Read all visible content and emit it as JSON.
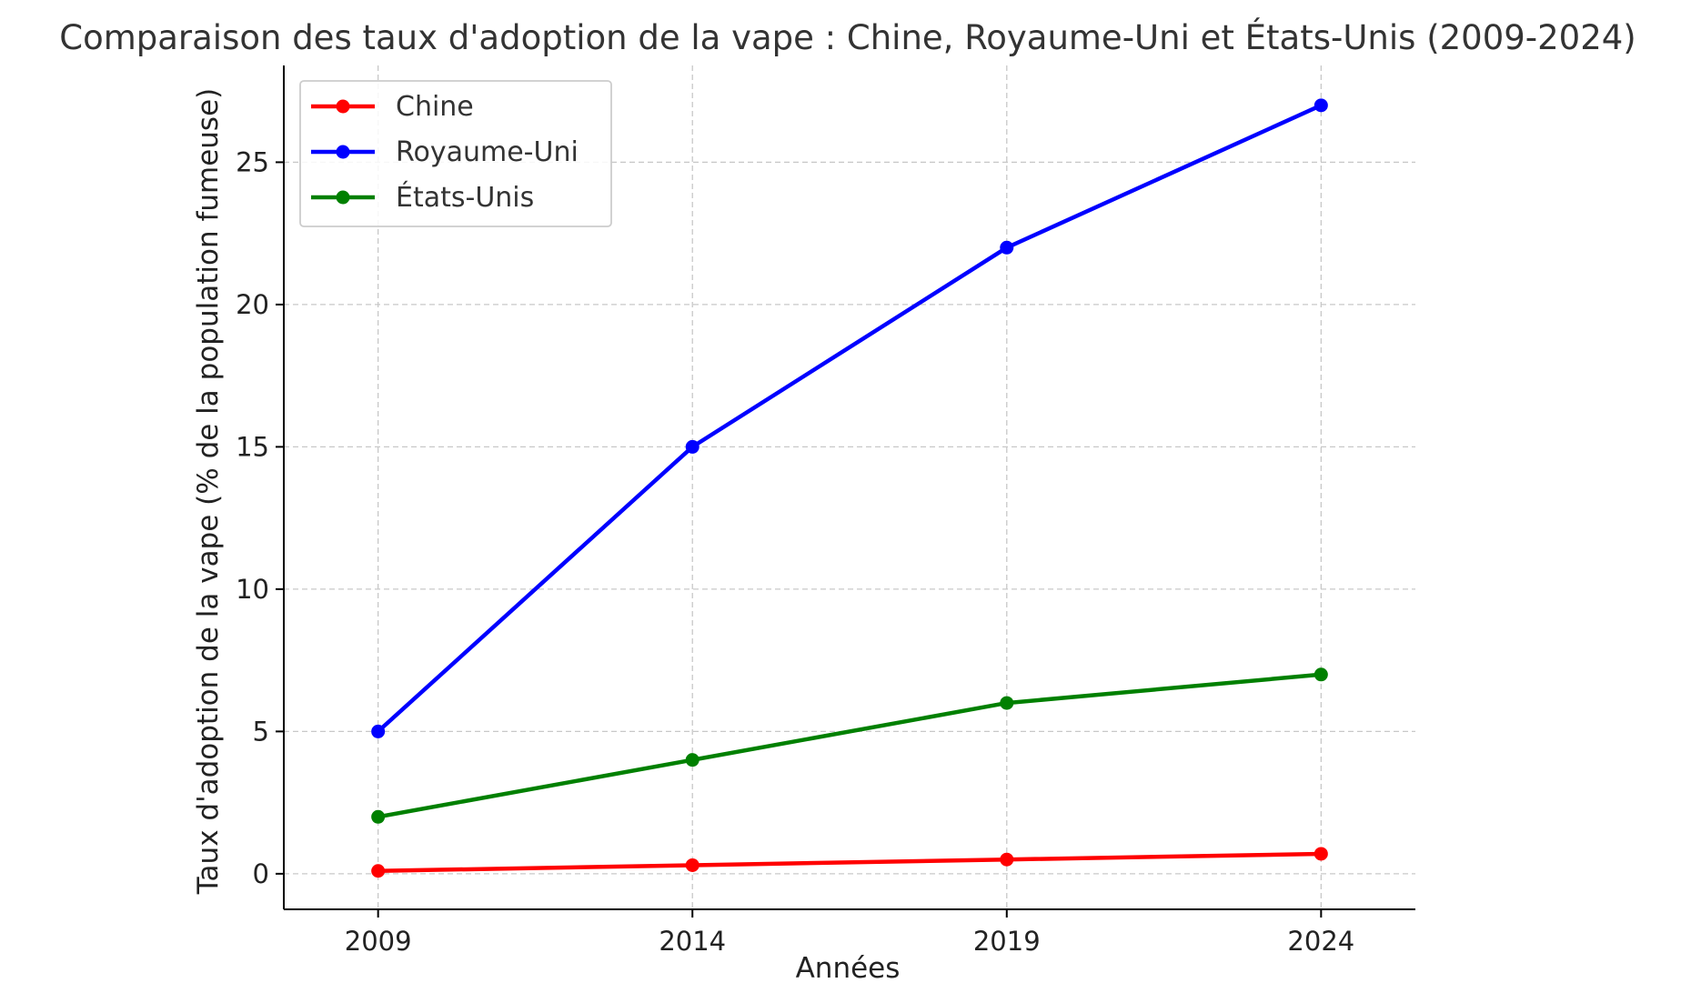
{
  "chart_data": {
    "type": "line",
    "title": "Comparaison des taux d'adoption de la vape : Chine, Royaume-Uni et États-Unis (2009-2024)",
    "xlabel": "Années",
    "ylabel": "Taux d'adoption de la vape (% de la population fumeuse)",
    "x": [
      2009,
      2014,
      2019,
      2024
    ],
    "xlim": [
      2007.5,
      2025.5
    ],
    "ylim": [
      -1.25,
      28.4
    ],
    "yticks": [
      0,
      5,
      10,
      15,
      20,
      25
    ],
    "grid": true,
    "legend_position": "top-left",
    "series": [
      {
        "name": "Chine",
        "color": "#ff0000",
        "values": [
          0.1,
          0.3,
          0.5,
          0.7
        ]
      },
      {
        "name": "Royaume-Uni",
        "color": "#0000ff",
        "values": [
          5,
          15,
          22,
          27
        ]
      },
      {
        "name": "États-Unis",
        "color": "#008000",
        "values": [
          2,
          4,
          6,
          7
        ]
      }
    ]
  }
}
